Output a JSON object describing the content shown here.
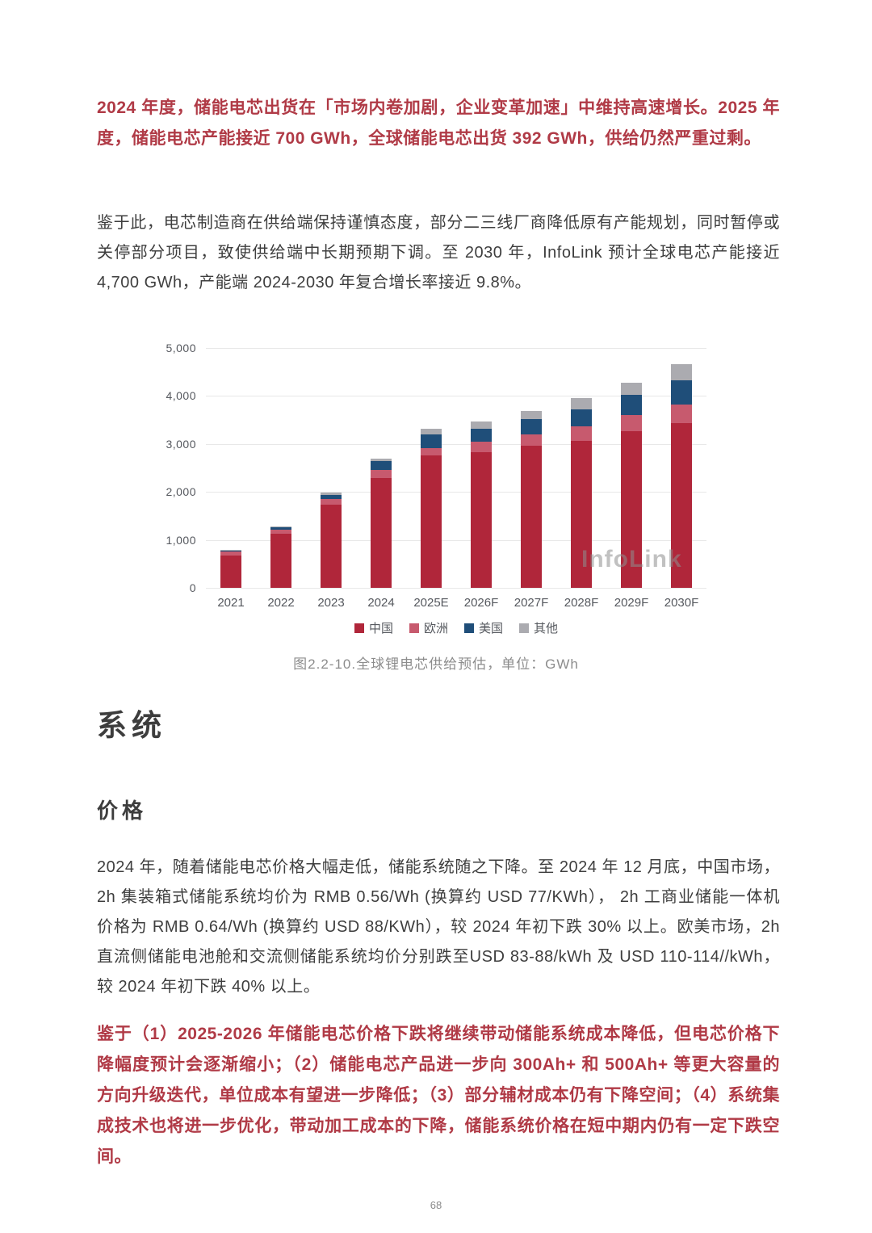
{
  "paragraphs": {
    "p1": "2024 年度，储能电芯出货在「市场内卷加剧，企业变革加速」中维持高速增长。2025 年度，储能电芯产能接近 700 GWh，全球储能电芯出货 392 GWh，供给仍然严重过剩。",
    "p2": "鉴于此，电芯制造商在供给端保持谨慎态度，部分二三线厂商降低原有产能规划，同时暂停或关停部分项目，致使供给端中长期预期下调。至 2030 年，InfoLink 预计全球电芯产能接近 4,700 GWh，产能端 2024-2030 年复合增长率接近 9.8%。",
    "p3": "2024 年，随着储能电芯价格大幅走低，储能系统随之下降。至 2024 年 12 月底，中国市场，2h 集装箱式储能系统均价为 RMB 0.56/Wh (换算约 USD 77/KWh）， 2h 工商业储能一体机价格为 RMB 0.64/Wh (换算约 USD 88/KWh），较 2024 年初下跌 30% 以上。欧美市场，2h直流侧储能电池舱和交流侧储能系统均价分别跌至USD 83-88/kWh 及 USD 110-114//kWh，较 2024 年初下跌 40% 以上。",
    "p4": "鉴于（1）2025-2026 年储能电芯价格下跌将继续带动储能系统成本降低，但电芯价格下降幅度预计会逐渐缩小；（2）储能电芯产品进一步向 300Ah+ 和 500Ah+ 等更大容量的方向升级迭代，单位成本有望进一步降低；（3）部分辅材成本仍有下降空间；（4）系统集成技术也将进一步优化，带动加工成本的下降，储能系统价格在短中期内仍有一定下跌空间。"
  },
  "sections": {
    "system_title": "系统",
    "price_title": "价格"
  },
  "chart_data": {
    "type": "bar",
    "stacked": true,
    "title": "",
    "caption": "图2.2-10.全球锂电芯供给预估，单位：GWh",
    "watermark": "InfoLink",
    "unit": "GWh",
    "categories": [
      "2021",
      "2022",
      "2023",
      "2024",
      "2025E",
      "2026F",
      "2027F",
      "2028F",
      "2029F",
      "2030F"
    ],
    "series": [
      {
        "name": "中国",
        "color": "#B0263A",
        "values": [
          670,
          1125,
          1740,
          2290,
          2760,
          2830,
          2970,
          3060,
          3260,
          3430
        ]
      },
      {
        "name": "欧洲",
        "color": "#C75A6E",
        "values": [
          80,
          90,
          120,
          175,
          155,
          220,
          230,
          310,
          345,
          390
        ]
      },
      {
        "name": "美国",
        "color": "#1F4E79",
        "values": [
          25,
          40,
          80,
          175,
          280,
          270,
          320,
          350,
          415,
          500
        ]
      },
      {
        "name": "其他",
        "color": "#ABABB0",
        "values": [
          10,
          20,
          40,
          60,
          130,
          140,
          170,
          240,
          260,
          350
        ]
      }
    ],
    "ylim": [
      0,
      5000
    ],
    "ytick_values": [
      0,
      1000,
      2000,
      3000,
      4000,
      5000
    ],
    "ytick_labels": [
      "0",
      "1,000",
      "2,000",
      "3,000",
      "4,000",
      "5,000"
    ],
    "grid": true,
    "legend_position": "bottom"
  },
  "footer": {
    "page_number": "68"
  }
}
